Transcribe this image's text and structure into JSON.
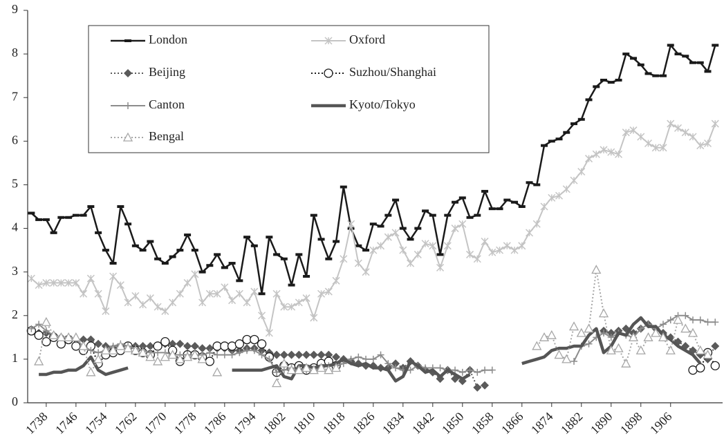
{
  "chart_data": {
    "type": "line",
    "x": [
      1734,
      1736,
      1738,
      1740,
      1742,
      1744,
      1746,
      1748,
      1750,
      1752,
      1754,
      1756,
      1758,
      1760,
      1762,
      1764,
      1766,
      1768,
      1770,
      1772,
      1774,
      1776,
      1778,
      1780,
      1782,
      1784,
      1786,
      1788,
      1790,
      1792,
      1794,
      1796,
      1798,
      1800,
      1802,
      1804,
      1806,
      1808,
      1810,
      1812,
      1814,
      1816,
      1818,
      1820,
      1822,
      1824,
      1826,
      1828,
      1830,
      1832,
      1834,
      1836,
      1838,
      1840,
      1842,
      1844,
      1846,
      1848,
      1850,
      1852,
      1854,
      1856,
      1858,
      1860,
      1862,
      1864,
      1866,
      1868,
      1870,
      1872,
      1874,
      1876,
      1878,
      1880,
      1882,
      1884,
      1886,
      1888,
      1890,
      1892,
      1894,
      1896,
      1898,
      1900,
      1902,
      1904,
      1906,
      1908,
      1910,
      1912,
      1914,
      1916,
      1918
    ],
    "xlim": [
      1733,
      1920
    ],
    "xticks": [
      1738,
      1746,
      1754,
      1762,
      1770,
      1778,
      1786,
      1794,
      1802,
      1810,
      1818,
      1826,
      1834,
      1842,
      1850,
      1858,
      1866,
      1874,
      1882,
      1890,
      1898,
      1906
    ],
    "ylim": [
      0,
      9
    ],
    "yticks": [
      0,
      1,
      2,
      3,
      4,
      5,
      6,
      7,
      8,
      9
    ],
    "grid": false,
    "legend": "top-left",
    "series": [
      {
        "name": "London",
        "color": "#1a1a1a",
        "marker": "dash",
        "line": "solid",
        "width": 2.5,
        "values": [
          4.35,
          4.2,
          4.2,
          3.9,
          4.25,
          4.25,
          4.3,
          4.3,
          4.5,
          3.9,
          3.5,
          3.2,
          4.5,
          4.1,
          3.6,
          3.5,
          3.7,
          3.3,
          3.2,
          3.35,
          3.5,
          3.85,
          3.5,
          3.0,
          3.15,
          3.4,
          3.1,
          3.2,
          2.8,
          3.8,
          3.6,
          2.5,
          3.8,
          3.4,
          3.3,
          2.7,
          3.4,
          2.9,
          4.3,
          3.75,
          3.3,
          3.7,
          4.95,
          4.0,
          3.6,
          3.5,
          4.1,
          4.05,
          4.3,
          4.65,
          4.0,
          3.75,
          4.0,
          4.4,
          4.3,
          3.4,
          4.3,
          4.6,
          4.7,
          4.25,
          4.3,
          4.85,
          4.45,
          4.45,
          4.65,
          4.6,
          4.5,
          5.05,
          5.0,
          5.9,
          6.0,
          6.05,
          6.2,
          6.4,
          6.5,
          6.95,
          7.25,
          7.4,
          7.35,
          7.4,
          8.0,
          7.9,
          7.75,
          7.55,
          7.5,
          7.5,
          8.2,
          8.0,
          7.95,
          7.8,
          7.8,
          7.6,
          8.2
        ]
      },
      {
        "name": "Oxford",
        "color": "#c4c4c4",
        "marker": "star",
        "line": "solid",
        "width": 2,
        "values": [
          2.85,
          2.7,
          2.75,
          2.75,
          2.75,
          2.75,
          2.75,
          2.5,
          2.85,
          2.5,
          2.1,
          2.9,
          2.7,
          2.3,
          2.45,
          2.25,
          2.4,
          2.2,
          2.1,
          2.3,
          2.5,
          2.75,
          2.95,
          2.3,
          2.5,
          2.5,
          2.65,
          2.35,
          2.5,
          2.3,
          2.55,
          2.0,
          1.6,
          2.5,
          2.2,
          2.2,
          2.3,
          2.4,
          1.95,
          2.5,
          2.55,
          2.8,
          3.3,
          4.1,
          3.2,
          3.0,
          3.5,
          3.6,
          3.8,
          3.9,
          3.5,
          3.2,
          3.4,
          3.65,
          3.6,
          3.1,
          3.6,
          4.0,
          4.1,
          3.4,
          3.3,
          3.7,
          3.45,
          3.5,
          3.6,
          3.5,
          3.6,
          3.9,
          4.1,
          4.5,
          4.7,
          4.75,
          4.9,
          5.1,
          5.3,
          5.6,
          5.7,
          5.8,
          5.75,
          5.7,
          6.2,
          6.25,
          6.1,
          5.95,
          5.85,
          5.85,
          6.4,
          6.3,
          6.2,
          6.1,
          5.9,
          5.95,
          6.4
        ]
      },
      {
        "name": "Beijing",
        "color": "#5a5a5a",
        "marker": "diamond",
        "line": "dotted",
        "width": 2,
        "values": [
          null,
          1.6,
          1.6,
          1.55,
          1.5,
          1.45,
          1.45,
          1.45,
          1.45,
          1.35,
          1.3,
          1.25,
          1.3,
          1.3,
          1.3,
          1.3,
          1.3,
          1.3,
          1.35,
          1.35,
          1.35,
          1.3,
          1.3,
          1.25,
          1.25,
          1.25,
          1.25,
          1.2,
          1.2,
          1.25,
          1.25,
          1.2,
          1.15,
          1.1,
          1.1,
          1.1,
          1.1,
          1.1,
          1.1,
          1.1,
          1.1,
          1.05,
          1.0,
          0.95,
          0.9,
          0.85,
          0.85,
          0.8,
          0.8,
          0.9,
          0.8,
          0.95,
          0.85,
          0.75,
          0.7,
          0.55,
          0.75,
          0.55,
          0.5,
          0.75,
          0.35,
          0.4,
          null,
          null,
          null,
          null,
          null,
          null,
          null,
          null,
          null,
          null,
          null,
          null,
          null,
          null,
          null,
          1.65,
          1.6,
          1.65,
          1.7,
          1.6,
          1.7,
          1.8,
          1.7,
          1.6,
          1.5,
          1.4,
          1.3,
          1.2,
          1.1,
          1.0,
          1.3
        ]
      },
      {
        "name": "Suzhou/Shanghai",
        "color": "#1a1a1a",
        "marker": "circle",
        "line": "dotted",
        "width": 2,
        "values": [
          1.65,
          1.55,
          1.4,
          1.5,
          1.35,
          1.45,
          1.3,
          1.2,
          1.3,
          0.9,
          1.1,
          1.15,
          1.2,
          1.3,
          1.2,
          1.15,
          1.1,
          1.3,
          1.4,
          1.2,
          0.95,
          1.1,
          1.1,
          1.05,
          0.95,
          1.3,
          1.3,
          1.3,
          1.35,
          1.45,
          1.45,
          1.35,
          1.05,
          0.7,
          0.85,
          0.8,
          0.85,
          0.75,
          0.8,
          0.9,
          0.95,
          0.85,
          null,
          null,
          null,
          null,
          null,
          null,
          null,
          null,
          null,
          null,
          null,
          null,
          null,
          null,
          null,
          null,
          null,
          null,
          null,
          null,
          null,
          null,
          null,
          null,
          null,
          null,
          null,
          null,
          null,
          null,
          null,
          null,
          null,
          null,
          null,
          null,
          null,
          null,
          null,
          null,
          null,
          null,
          null,
          null,
          null,
          null,
          null,
          0.75,
          0.8,
          1.15,
          0.85
        ]
      },
      {
        "name": "Canton",
        "color": "#8c8c8c",
        "marker": "plus",
        "line": "solid",
        "width": 2,
        "values": [
          1.7,
          1.8,
          1.65,
          1.55,
          1.5,
          1.5,
          1.45,
          1.3,
          1.2,
          1.15,
          1.2,
          1.3,
          1.35,
          1.3,
          1.25,
          1.2,
          1.15,
          1.15,
          1.15,
          1.1,
          1.1,
          1.1,
          1.1,
          1.1,
          1.15,
          1.1,
          1.1,
          1.1,
          1.15,
          1.2,
          1.2,
          1.1,
          1.0,
          0.7,
          0.75,
          0.8,
          0.75,
          0.75,
          0.75,
          0.8,
          0.85,
          0.85,
          0.9,
          1.0,
          1.05,
          1.0,
          1.0,
          1.1,
          0.9,
          0.8,
          0.75,
          0.75,
          0.85,
          0.8,
          0.8,
          0.8,
          0.75,
          0.75,
          0.7,
          0.75,
          0.7,
          0.75,
          0.75,
          null,
          null,
          null,
          null,
          null,
          null,
          null,
          null,
          null,
          null,
          0.95,
          1.3,
          1.35,
          1.5,
          1.6,
          1.5,
          1.6,
          1.55,
          1.5,
          1.7,
          1.8,
          1.7,
          1.8,
          1.9,
          2.0,
          2.0,
          1.9,
          1.9,
          1.85,
          1.85
        ]
      },
      {
        "name": "Kyoto/Tokyo",
        "color": "#555555",
        "marker": "none",
        "line": "solid",
        "width": 4.5,
        "values": [
          null,
          0.65,
          0.65,
          0.7,
          0.7,
          0.75,
          0.75,
          0.85,
          1.05,
          0.75,
          0.65,
          0.7,
          0.75,
          0.8,
          null,
          null,
          null,
          null,
          null,
          null,
          null,
          null,
          null,
          null,
          null,
          null,
          null,
          0.75,
          0.75,
          0.75,
          0.75,
          0.75,
          0.8,
          0.85,
          0.6,
          0.55,
          0.85,
          0.85,
          0.8,
          0.85,
          0.85,
          0.9,
          1.0,
          0.9,
          0.85,
          0.9,
          0.8,
          0.8,
          0.75,
          0.5,
          0.6,
          0.95,
          0.85,
          0.7,
          0.75,
          0.6,
          0.75,
          0.65,
          0.55,
          0.65,
          null,
          null,
          null,
          null,
          null,
          null,
          0.9,
          0.95,
          1.0,
          1.05,
          1.2,
          1.25,
          1.25,
          1.3,
          1.3,
          1.55,
          1.7,
          1.15,
          1.3,
          1.6,
          1.55,
          1.8,
          1.95,
          1.75,
          1.75,
          1.55,
          1.45,
          1.3,
          1.2,
          1.1,
          0.9,
          null,
          null
        ]
      },
      {
        "name": "Bengal",
        "color": "#a6a6a6",
        "marker": "triangle",
        "line": "dotted",
        "width": 2,
        "values": [
          null,
          0.95,
          1.85,
          1.55,
          1.5,
          1.5,
          1.5,
          1.3,
          0.7,
          1.0,
          1.2,
          1.2,
          1.3,
          1.25,
          1.2,
          1.15,
          1.05,
          0.95,
          1.05,
          1.1,
          1.0,
          1.05,
          1.1,
          1.0,
          null,
          0.7,
          null,
          null,
          null,
          null,
          null,
          null,
          null,
          0.45,
          0.9,
          0.75,
          0.75,
          0.8,
          0.75,
          0.8,
          0.75,
          0.8,
          null,
          null,
          null,
          null,
          null,
          null,
          null,
          null,
          null,
          null,
          null,
          null,
          null,
          null,
          null,
          null,
          null,
          null,
          null,
          null,
          null,
          null,
          null,
          null,
          null,
          null,
          1.3,
          1.5,
          1.55,
          1.1,
          1.0,
          1.75,
          1.6,
          1.7,
          3.05,
          2.05,
          1.2,
          1.25,
          0.9,
          1.5,
          1.2,
          1.5,
          1.6,
          1.5,
          1.2,
          1.9,
          1.7,
          1.6,
          1.2,
          1.1,
          null
        ]
      }
    ]
  }
}
